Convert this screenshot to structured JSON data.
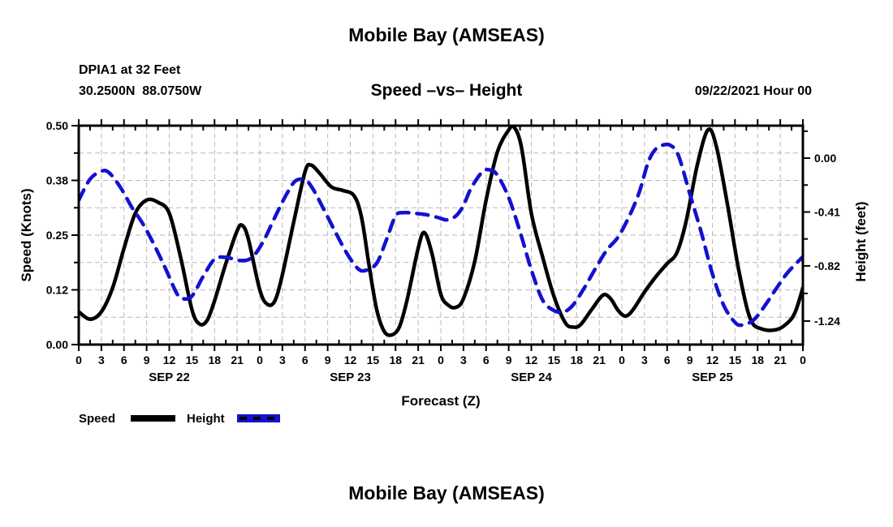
{
  "header": {
    "title": "Mobile Bay (AMSEAS)",
    "station_line1": "DPIA1 at 32 Feet",
    "station_line2": "30.2500N  88.0750W",
    "subtitle": "Speed –vs– Height",
    "run_datetime": "09/22/2021 Hour 00"
  },
  "legend": {
    "speed_label": "Speed",
    "height_label": "Height",
    "speed_color": "#000000",
    "height_color": "#1212cf"
  },
  "footer": {
    "next_chart_title": "Mobile Bay (AMSEAS)"
  },
  "chart_data": {
    "type": "line",
    "title": "Mobile Bay (AMSEAS)",
    "subtitle": "Speed –vs– Height",
    "xlabel": "Forecast (Z)",
    "ylabel_left": "Speed (Knots)",
    "ylabel_right": "Height (feet)",
    "grid": true,
    "legend_position": "bottom-left",
    "x_range_hours": [
      0,
      96
    ],
    "x_tick_interval_hours": 3,
    "x_tick_labels_cycle": [
      "0",
      "3",
      "6",
      "9",
      "12",
      "15",
      "18",
      "21"
    ],
    "day_labels": [
      "SEP 22",
      "SEP 23",
      "SEP 24",
      "SEP 25"
    ],
    "day_label_center_hours": [
      12,
      36,
      60,
      84
    ],
    "ylim_left": [
      0,
      0.5
    ],
    "left_ticks": [
      {
        "label": "0.00",
        "value": 0.0
      },
      {
        "label": "0.12",
        "value": 0.125
      },
      {
        "label": "0.25",
        "value": 0.25
      },
      {
        "label": "0.38",
        "value": 0.375
      },
      {
        "label": "0.50",
        "value": 0.5
      }
    ],
    "ylim_right": [
      -1.419,
      0.247
    ],
    "right_ticks": [
      {
        "label": "0.00",
        "value": 0.0
      },
      {
        "label": "-0.41",
        "value": -0.41
      },
      {
        "label": "-0.82",
        "value": -0.82
      },
      {
        "label": "-1.24",
        "value": -1.24
      }
    ],
    "right_minor_tick_values": [
      0.205,
      -0.205,
      -0.615,
      -1.03
    ],
    "series": [
      {
        "name": "Speed",
        "axis": "left",
        "units": "knots",
        "color": "#000000",
        "style": "solid",
        "points": [
          [
            0,
            0.075
          ],
          [
            1.5,
            0.058
          ],
          [
            3,
            0.075
          ],
          [
            4.5,
            0.13
          ],
          [
            6,
            0.22
          ],
          [
            7.5,
            0.3
          ],
          [
            9,
            0.33
          ],
          [
            10.5,
            0.325
          ],
          [
            12,
            0.3
          ],
          [
            13.5,
            0.2
          ],
          [
            15,
            0.08
          ],
          [
            16,
            0.047
          ],
          [
            17,
            0.055
          ],
          [
            18,
            0.1
          ],
          [
            19.5,
            0.185
          ],
          [
            21,
            0.26
          ],
          [
            21.7,
            0.272
          ],
          [
            22.5,
            0.24
          ],
          [
            24,
            0.125
          ],
          [
            25,
            0.092
          ],
          [
            26,
            0.1
          ],
          [
            27,
            0.16
          ],
          [
            28.5,
            0.28
          ],
          [
            30,
            0.395
          ],
          [
            30.8,
            0.41
          ],
          [
            32,
            0.39
          ],
          [
            33.5,
            0.36
          ],
          [
            35,
            0.352
          ],
          [
            36.5,
            0.34
          ],
          [
            37.5,
            0.29
          ],
          [
            38.5,
            0.18
          ],
          [
            39.5,
            0.08
          ],
          [
            40.5,
            0.03
          ],
          [
            41.5,
            0.022
          ],
          [
            42.5,
            0.04
          ],
          [
            43.5,
            0.1
          ],
          [
            45,
            0.22
          ],
          [
            45.8,
            0.256
          ],
          [
            46.8,
            0.21
          ],
          [
            48,
            0.115
          ],
          [
            49,
            0.09
          ],
          [
            50,
            0.085
          ],
          [
            51,
            0.105
          ],
          [
            52.5,
            0.19
          ],
          [
            54,
            0.33
          ],
          [
            55.5,
            0.44
          ],
          [
            57,
            0.49
          ],
          [
            57.7,
            0.497
          ],
          [
            58.7,
            0.45
          ],
          [
            60,
            0.3
          ],
          [
            61.5,
            0.2
          ],
          [
            63,
            0.11
          ],
          [
            64.5,
            0.05
          ],
          [
            65.5,
            0.04
          ],
          [
            66.5,
            0.045
          ],
          [
            68,
            0.08
          ],
          [
            69.5,
            0.113
          ],
          [
            70.5,
            0.105
          ],
          [
            71.5,
            0.078
          ],
          [
            72.5,
            0.065
          ],
          [
            73.5,
            0.08
          ],
          [
            75,
            0.12
          ],
          [
            76.5,
            0.155
          ],
          [
            78,
            0.185
          ],
          [
            79.3,
            0.21
          ],
          [
            80.5,
            0.28
          ],
          [
            82,
            0.41
          ],
          [
            83.4,
            0.49
          ],
          [
            84.5,
            0.455
          ],
          [
            86,
            0.32
          ],
          [
            87.5,
            0.17
          ],
          [
            89,
            0.06
          ],
          [
            90.5,
            0.036
          ],
          [
            92.5,
            0.034
          ],
          [
            94,
            0.05
          ],
          [
            95,
            0.075
          ],
          [
            96,
            0.13
          ]
        ]
      },
      {
        "name": "Height",
        "axis": "right",
        "units": "feet",
        "color": "#1212cf",
        "style": "dashed",
        "points": [
          [
            0,
            -0.32
          ],
          [
            1.5,
            -0.16
          ],
          [
            3,
            -0.1
          ],
          [
            4,
            -0.11
          ],
          [
            5.5,
            -0.22
          ],
          [
            7,
            -0.37
          ],
          [
            8.5,
            -0.5
          ],
          [
            10,
            -0.66
          ],
          [
            11.5,
            -0.84
          ],
          [
            13,
            -1.03
          ],
          [
            13.8,
            -1.07
          ],
          [
            15,
            -1.05
          ],
          [
            16.5,
            -0.9
          ],
          [
            18,
            -0.77
          ],
          [
            19.5,
            -0.755
          ],
          [
            21.5,
            -0.78
          ],
          [
            23,
            -0.755
          ],
          [
            24.5,
            -0.63
          ],
          [
            26,
            -0.45
          ],
          [
            27.5,
            -0.28
          ],
          [
            28.7,
            -0.175
          ],
          [
            30,
            -0.165
          ],
          [
            31,
            -0.23
          ],
          [
            32.4,
            -0.38
          ],
          [
            34,
            -0.56
          ],
          [
            35.6,
            -0.73
          ],
          [
            37,
            -0.84
          ],
          [
            38,
            -0.855
          ],
          [
            39.5,
            -0.8
          ],
          [
            40.8,
            -0.62
          ],
          [
            42,
            -0.44
          ],
          [
            43,
            -0.415
          ],
          [
            44.5,
            -0.42
          ],
          [
            46,
            -0.43
          ],
          [
            47.5,
            -0.45
          ],
          [
            48.8,
            -0.47
          ],
          [
            50,
            -0.44
          ],
          [
            51,
            -0.36
          ],
          [
            52,
            -0.23
          ],
          [
            53.5,
            -0.105
          ],
          [
            54.5,
            -0.09
          ],
          [
            55.5,
            -0.13
          ],
          [
            57,
            -0.3
          ],
          [
            58.5,
            -0.56
          ],
          [
            60,
            -0.85
          ],
          [
            61.5,
            -1.08
          ],
          [
            63,
            -1.16
          ],
          [
            64.3,
            -1.17
          ],
          [
            65.5,
            -1.12
          ],
          [
            67,
            -0.99
          ],
          [
            68.5,
            -0.84
          ],
          [
            70,
            -0.7
          ],
          [
            71.5,
            -0.6
          ],
          [
            73,
            -0.44
          ],
          [
            74.3,
            -0.26
          ],
          [
            75.5,
            -0.03
          ],
          [
            76.5,
            0.07
          ],
          [
            77.5,
            0.1
          ],
          [
            78.5,
            0.095
          ],
          [
            79.5,
            0.02
          ],
          [
            81,
            -0.27
          ],
          [
            82.5,
            -0.56
          ],
          [
            84,
            -0.88
          ],
          [
            85.5,
            -1.12
          ],
          [
            87,
            -1.25
          ],
          [
            88,
            -1.27
          ],
          [
            89.5,
            -1.23
          ],
          [
            91,
            -1.12
          ],
          [
            92.5,
            -0.99
          ],
          [
            94,
            -0.87
          ],
          [
            96,
            -0.75
          ]
        ]
      }
    ]
  }
}
